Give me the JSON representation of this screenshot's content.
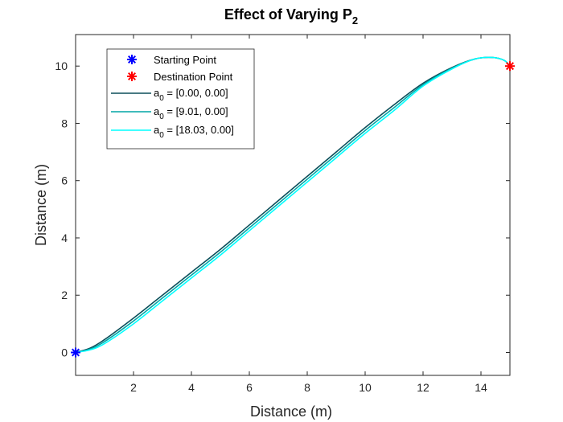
{
  "chart_data": {
    "type": "line",
    "title": "Effect of Varying P",
    "title_subscript": "2",
    "xlabel": "Distance (m)",
    "ylabel": "Distance (m)",
    "xlim": [
      0,
      15
    ],
    "ylim": [
      -0.8,
      11.1
    ],
    "xticks": [
      2,
      4,
      6,
      8,
      10,
      12,
      14
    ],
    "yticks": [
      0,
      2,
      4,
      6,
      8,
      10
    ],
    "grid": false,
    "legend_position": "top-left",
    "markers": [
      {
        "name": "Starting Point",
        "x": 0,
        "y": 0,
        "color": "#0000ff",
        "symbol": "asterisk"
      },
      {
        "name": "Destination Point",
        "x": 15,
        "y": 10,
        "color": "#ff0000",
        "symbol": "asterisk"
      }
    ],
    "series": [
      {
        "name": "a",
        "name_subscript": "0",
        "name_suffix": " = [0.00, 0.00]",
        "color": "#0b4f5a",
        "x": [
          0,
          0.5,
          1,
          2,
          3,
          4,
          5,
          6,
          7,
          8,
          9,
          10,
          11,
          12,
          13,
          13.8,
          14.4,
          14.8,
          15
        ],
        "y": [
          0,
          0.15,
          0.45,
          1.2,
          2.0,
          2.8,
          3.6,
          4.45,
          5.3,
          6.15,
          7.0,
          7.85,
          8.65,
          9.4,
          9.95,
          10.25,
          10.3,
          10.2,
          10.0
        ]
      },
      {
        "name": "a",
        "name_subscript": "0",
        "name_suffix": " = [9.01, 0.00]",
        "color": "#00a6a6",
        "x": [
          0,
          0.5,
          1,
          2,
          3,
          4,
          5,
          6,
          7,
          8,
          9,
          10,
          11,
          12,
          13,
          13.8,
          14.4,
          14.8,
          15
        ],
        "y": [
          0,
          0.12,
          0.38,
          1.1,
          1.9,
          2.7,
          3.5,
          4.35,
          5.2,
          6.05,
          6.9,
          7.75,
          8.55,
          9.35,
          9.93,
          10.25,
          10.3,
          10.2,
          10.0
        ]
      },
      {
        "name": "a",
        "name_subscript": "0",
        "name_suffix": " = [18.03, 0.00]",
        "color": "#00ffff",
        "x": [
          0,
          0.5,
          1,
          2,
          3,
          4,
          5,
          6,
          7,
          8,
          9,
          10,
          11,
          12,
          13,
          13.8,
          14.4,
          14.8,
          15
        ],
        "y": [
          0,
          0.09,
          0.31,
          1.0,
          1.8,
          2.6,
          3.4,
          4.25,
          5.1,
          5.95,
          6.8,
          7.65,
          8.45,
          9.3,
          9.9,
          10.25,
          10.3,
          10.2,
          10.0
        ]
      }
    ]
  }
}
